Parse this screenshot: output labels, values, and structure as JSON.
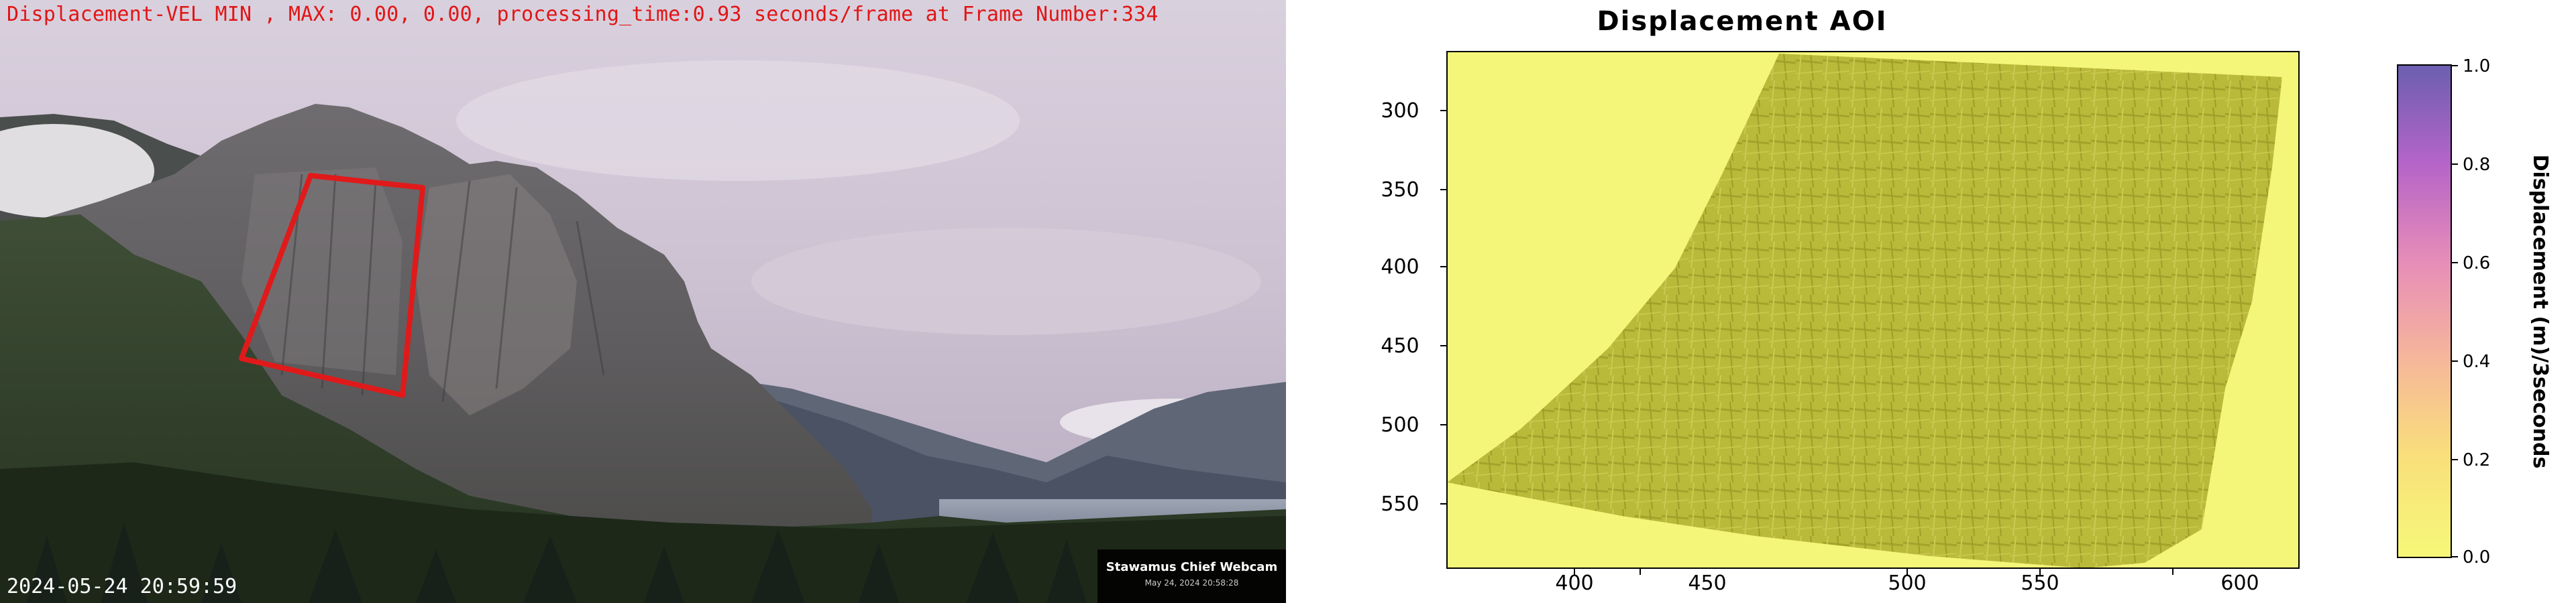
{
  "webcam": {
    "overlay_title": "Displacement-VEL MIN , MAX: 0.00, 0.00, processing_time:0.93 seconds/frame at Frame Number:334",
    "timestamp": "2024-05-24 20:59:59",
    "badge_name": "Stawamus Chief Webcam",
    "badge_date": "May 24, 2024 20:58:28",
    "aoi_box_color": "#e01a1a",
    "text_color": "#e21515"
  },
  "plot": {
    "title": "Displacement AOI",
    "x_ticks": [
      "400",
      "450",
      "500",
      "550",
      "600"
    ],
    "y_ticks": [
      "300",
      "350",
      "400",
      "450",
      "500",
      "550"
    ],
    "colorbar": {
      "label": "Displacement (m)/3seconds",
      "ticks": [
        "1.0",
        "0.8",
        "0.6",
        "0.4",
        "0.2",
        "0.0"
      ],
      "colors": [
        "#6b5fb0",
        "#b564c8",
        "#e78db8",
        "#f6b79a",
        "#f9e07a",
        "#f6f879"
      ]
    },
    "background_color": "#f4f67a",
    "surface_color": "#b9b93a"
  }
}
